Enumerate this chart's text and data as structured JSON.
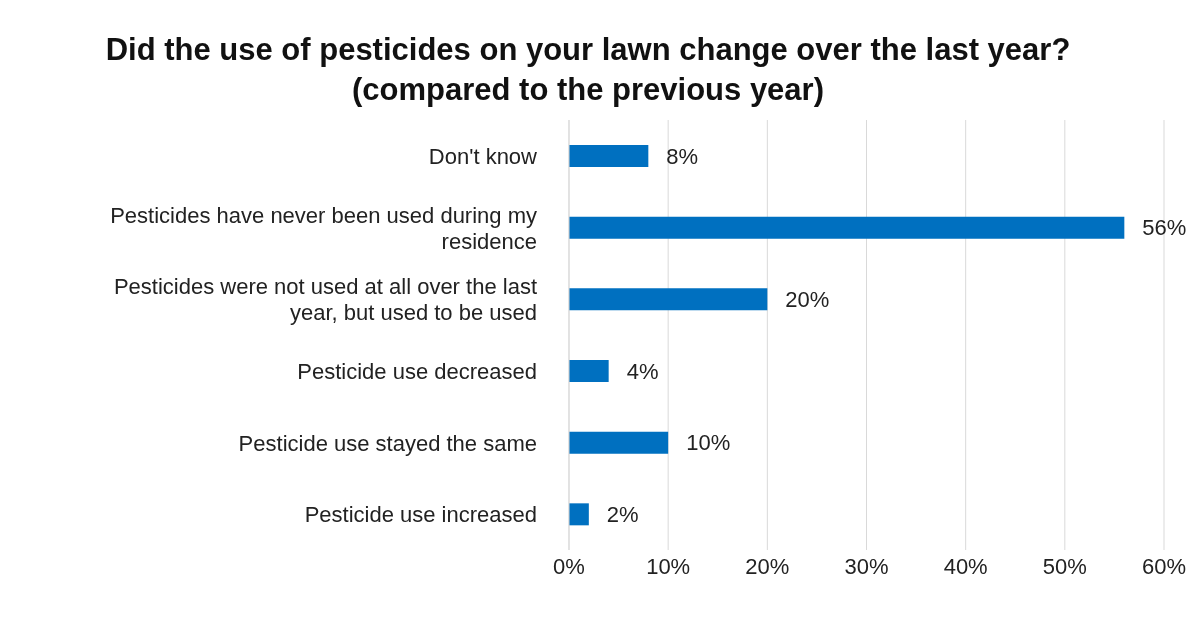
{
  "chart_data": {
    "type": "bar",
    "orientation": "horizontal",
    "title": "Did the use of pesticides on your lawn change over the last year?  (compared to the previous year)",
    "categories": [
      "Don't know",
      "Pesticides have never been used during my residence",
      "Pesticides were not used at all over the last year, but used to be used",
      "Pesticide use decreased",
      "Pesticide use stayed the same",
      "Pesticide use increased"
    ],
    "values": [
      8,
      56,
      20,
      4,
      10,
      2
    ],
    "value_labels": [
      "8%",
      "56%",
      "20%",
      "4%",
      "10%",
      "2%"
    ],
    "color": "#0070c0",
    "xlim": [
      0,
      60
    ],
    "xticks": [
      {
        "value": 0,
        "label": "0%"
      },
      {
        "value": 10,
        "label": "10%"
      },
      {
        "value": 20,
        "label": "20%"
      },
      {
        "value": 30,
        "label": "30%"
      },
      {
        "value": 40,
        "label": "40%"
      },
      {
        "value": 50,
        "label": "50%"
      },
      {
        "value": 60,
        "label": "60%"
      }
    ],
    "grid": "x"
  }
}
